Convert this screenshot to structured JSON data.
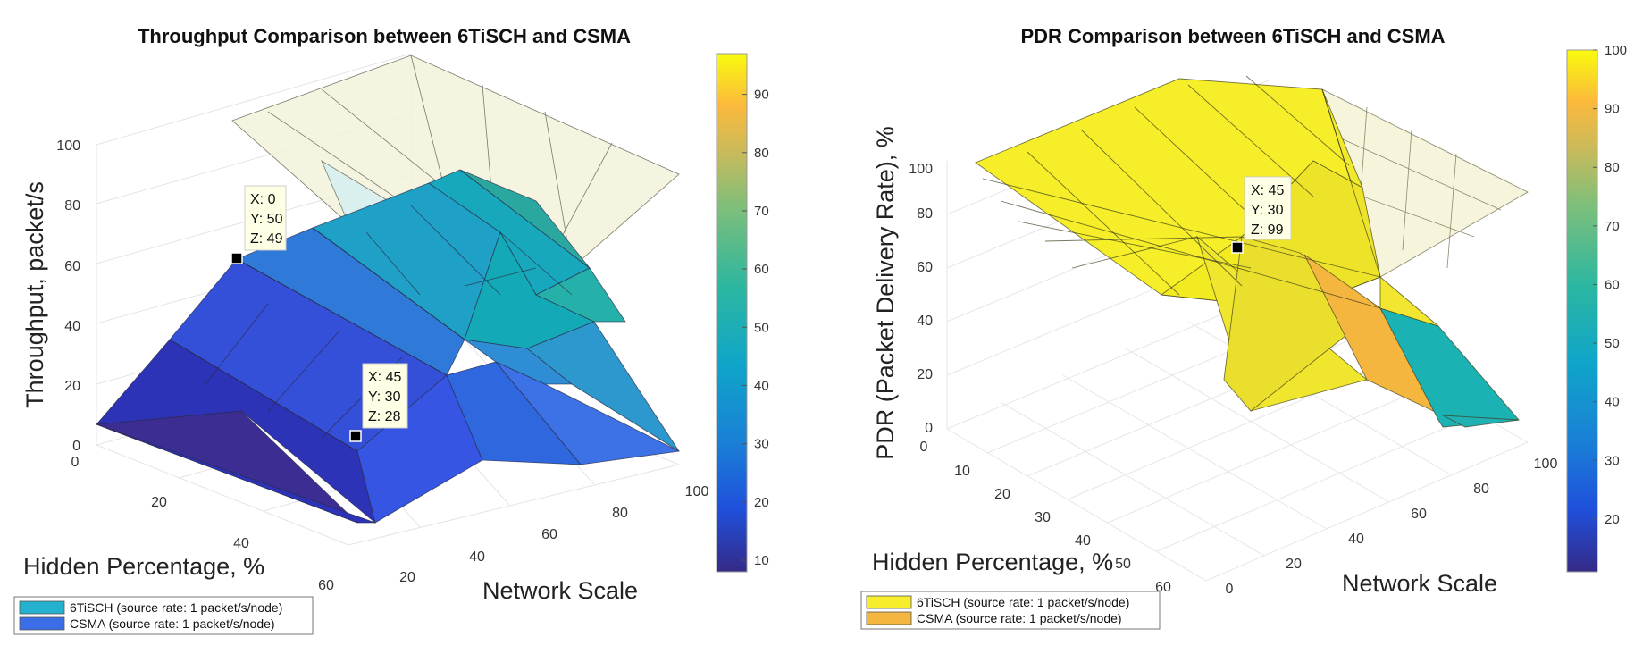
{
  "chart_data": [
    {
      "type": "surface3d",
      "title": "Throughput Comparison between 6TiSCH and CSMA",
      "zlabel": "Throughput, packet/s",
      "ylabel": "Hidden Percentage, %",
      "xlabel": "Network Scale",
      "zlim": [
        0,
        100
      ],
      "zticks": [
        "0",
        "20",
        "40",
        "60",
        "80",
        "100"
      ],
      "yticks": [
        "0",
        "20",
        "40",
        "60"
      ],
      "xticks": [
        "20",
        "40",
        "60",
        "80",
        "100"
      ],
      "colorbar": {
        "min": 8,
        "max": 97,
        "ticks": [
          "10",
          "20",
          "30",
          "40",
          "50",
          "60",
          "70",
          "80",
          "90"
        ]
      },
      "datatips": [
        {
          "x": "X: 0",
          "y": "Y: 50",
          "z": "Z: 49"
        },
        {
          "x": "X: 45",
          "y": "Y: 30",
          "z": "Z: 28"
        }
      ],
      "legend": [
        {
          "label": "6TiSCH (source rate: 1 packet/s/node)",
          "color": "#24b0cf"
        },
        {
          "label": "CSMA (source rate: 1 packet/s/node)",
          "color": "#3b6ee6"
        }
      ]
    },
    {
      "type": "surface3d",
      "title": "PDR Comparison between 6TiSCH and CSMA",
      "zlabel": "PDR (Packet Delivery Rate), %",
      "ylabel": "Hidden Percentage, %",
      "xlabel": "Network Scale",
      "zlim": [
        0,
        100
      ],
      "zticks": [
        "0",
        "20",
        "40",
        "60",
        "80",
        "100"
      ],
      "yticks": [
        "0",
        "10",
        "20",
        "30",
        "40",
        "50",
        "60"
      ],
      "xticks": [
        "0",
        "20",
        "40",
        "60",
        "80",
        "100"
      ],
      "colorbar": {
        "min": 11,
        "max": 100,
        "ticks": [
          "20",
          "30",
          "40",
          "50",
          "60",
          "70",
          "80",
          "90",
          "100"
        ]
      },
      "datatips": [
        {
          "x": "X: 45",
          "y": "Y: 30",
          "z": "Z: 99"
        }
      ],
      "legend": [
        {
          "label": "6TiSCH (source rate: 1 packet/s/node)",
          "color": "#f6ee2c"
        },
        {
          "label": "CSMA (source rate: 1 packet/s/node)",
          "color": "#f4b63f"
        }
      ]
    }
  ]
}
